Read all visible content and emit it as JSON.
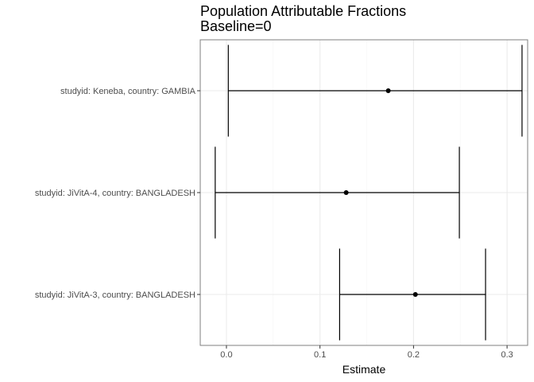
{
  "chart_data": {
    "type": "forest",
    "title": "Population Attributable Fractions",
    "subtitle": "Baseline=0",
    "xlabel": "Estimate",
    "ylabel": "",
    "xlim": [
      -0.028,
      0.322
    ],
    "x_ticks": [
      0.0,
      0.1,
      0.2,
      0.3
    ],
    "x_tick_labels": [
      "0.0",
      "0.1",
      "0.2",
      "0.3"
    ],
    "grid": true,
    "legend": "none",
    "rows": [
      {
        "label": "studyid: Keneba, country: GAMBIA",
        "estimate": 0.173,
        "lower": 0.002,
        "upper": 0.316
      },
      {
        "label": "studyid: JiVitA-4, country: BANGLADESH",
        "estimate": 0.128,
        "lower": -0.012,
        "upper": 0.249
      },
      {
        "label": "studyid: JiVitA-3, country: BANGLADESH",
        "estimate": 0.202,
        "lower": 0.121,
        "upper": 0.277
      }
    ],
    "colors": {
      "panel_border": "#7f7f7f",
      "grid_major": "#ebebeb",
      "grid_minor": "#f5f5f5",
      "mark": "#000000",
      "tick_text": "#4d4d4d"
    }
  }
}
